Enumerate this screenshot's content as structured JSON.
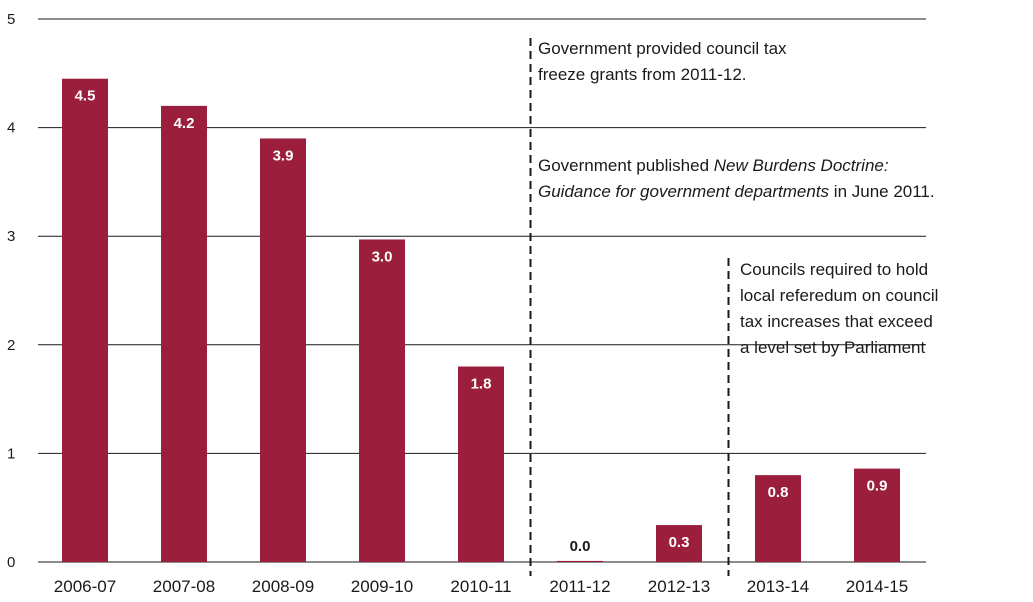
{
  "chart_data": {
    "type": "bar",
    "categories": [
      "2006-07",
      "2007-08",
      "2008-09",
      "2009-10",
      "2010-11",
      "2011-12",
      "2012-13",
      "2013-14",
      "2014-15"
    ],
    "values": [
      4.45,
      4.2,
      3.9,
      2.97,
      1.8,
      0.01,
      0.34,
      0.8,
      0.86
    ],
    "data_labels": [
      "4.5",
      "4.2",
      "3.9",
      "3.0",
      "1.8",
      "0.0",
      "0.3",
      "0.8",
      "0.9"
    ],
    "ylim": [
      0,
      5
    ],
    "yticks": [
      "0",
      "1",
      "2",
      "3",
      "4",
      "5"
    ],
    "grid": true,
    "bar_color": "#9b1f3c",
    "markers": [
      {
        "after_category": "2010-11",
        "style": "dashed"
      },
      {
        "after_category": "2012-13",
        "style": "dashed"
      }
    ],
    "annotations": {
      "grants_line1": "Government provided council tax",
      "grants_line2": "freeze grants from 2011-12.",
      "doctrine_line1_pre": "Government published ",
      "doctrine_line1_italic": "New Burdens Doctrine:",
      "doctrine_line2_italic": "Guidance for government departments",
      "doctrine_line2_post": " in June 2011.",
      "referendum_line1": "Councils required to hold",
      "referendum_line2": "local referedum on council",
      "referendum_line3": "tax increases that exceed",
      "referendum_line4": "a level set by Parliament"
    }
  }
}
